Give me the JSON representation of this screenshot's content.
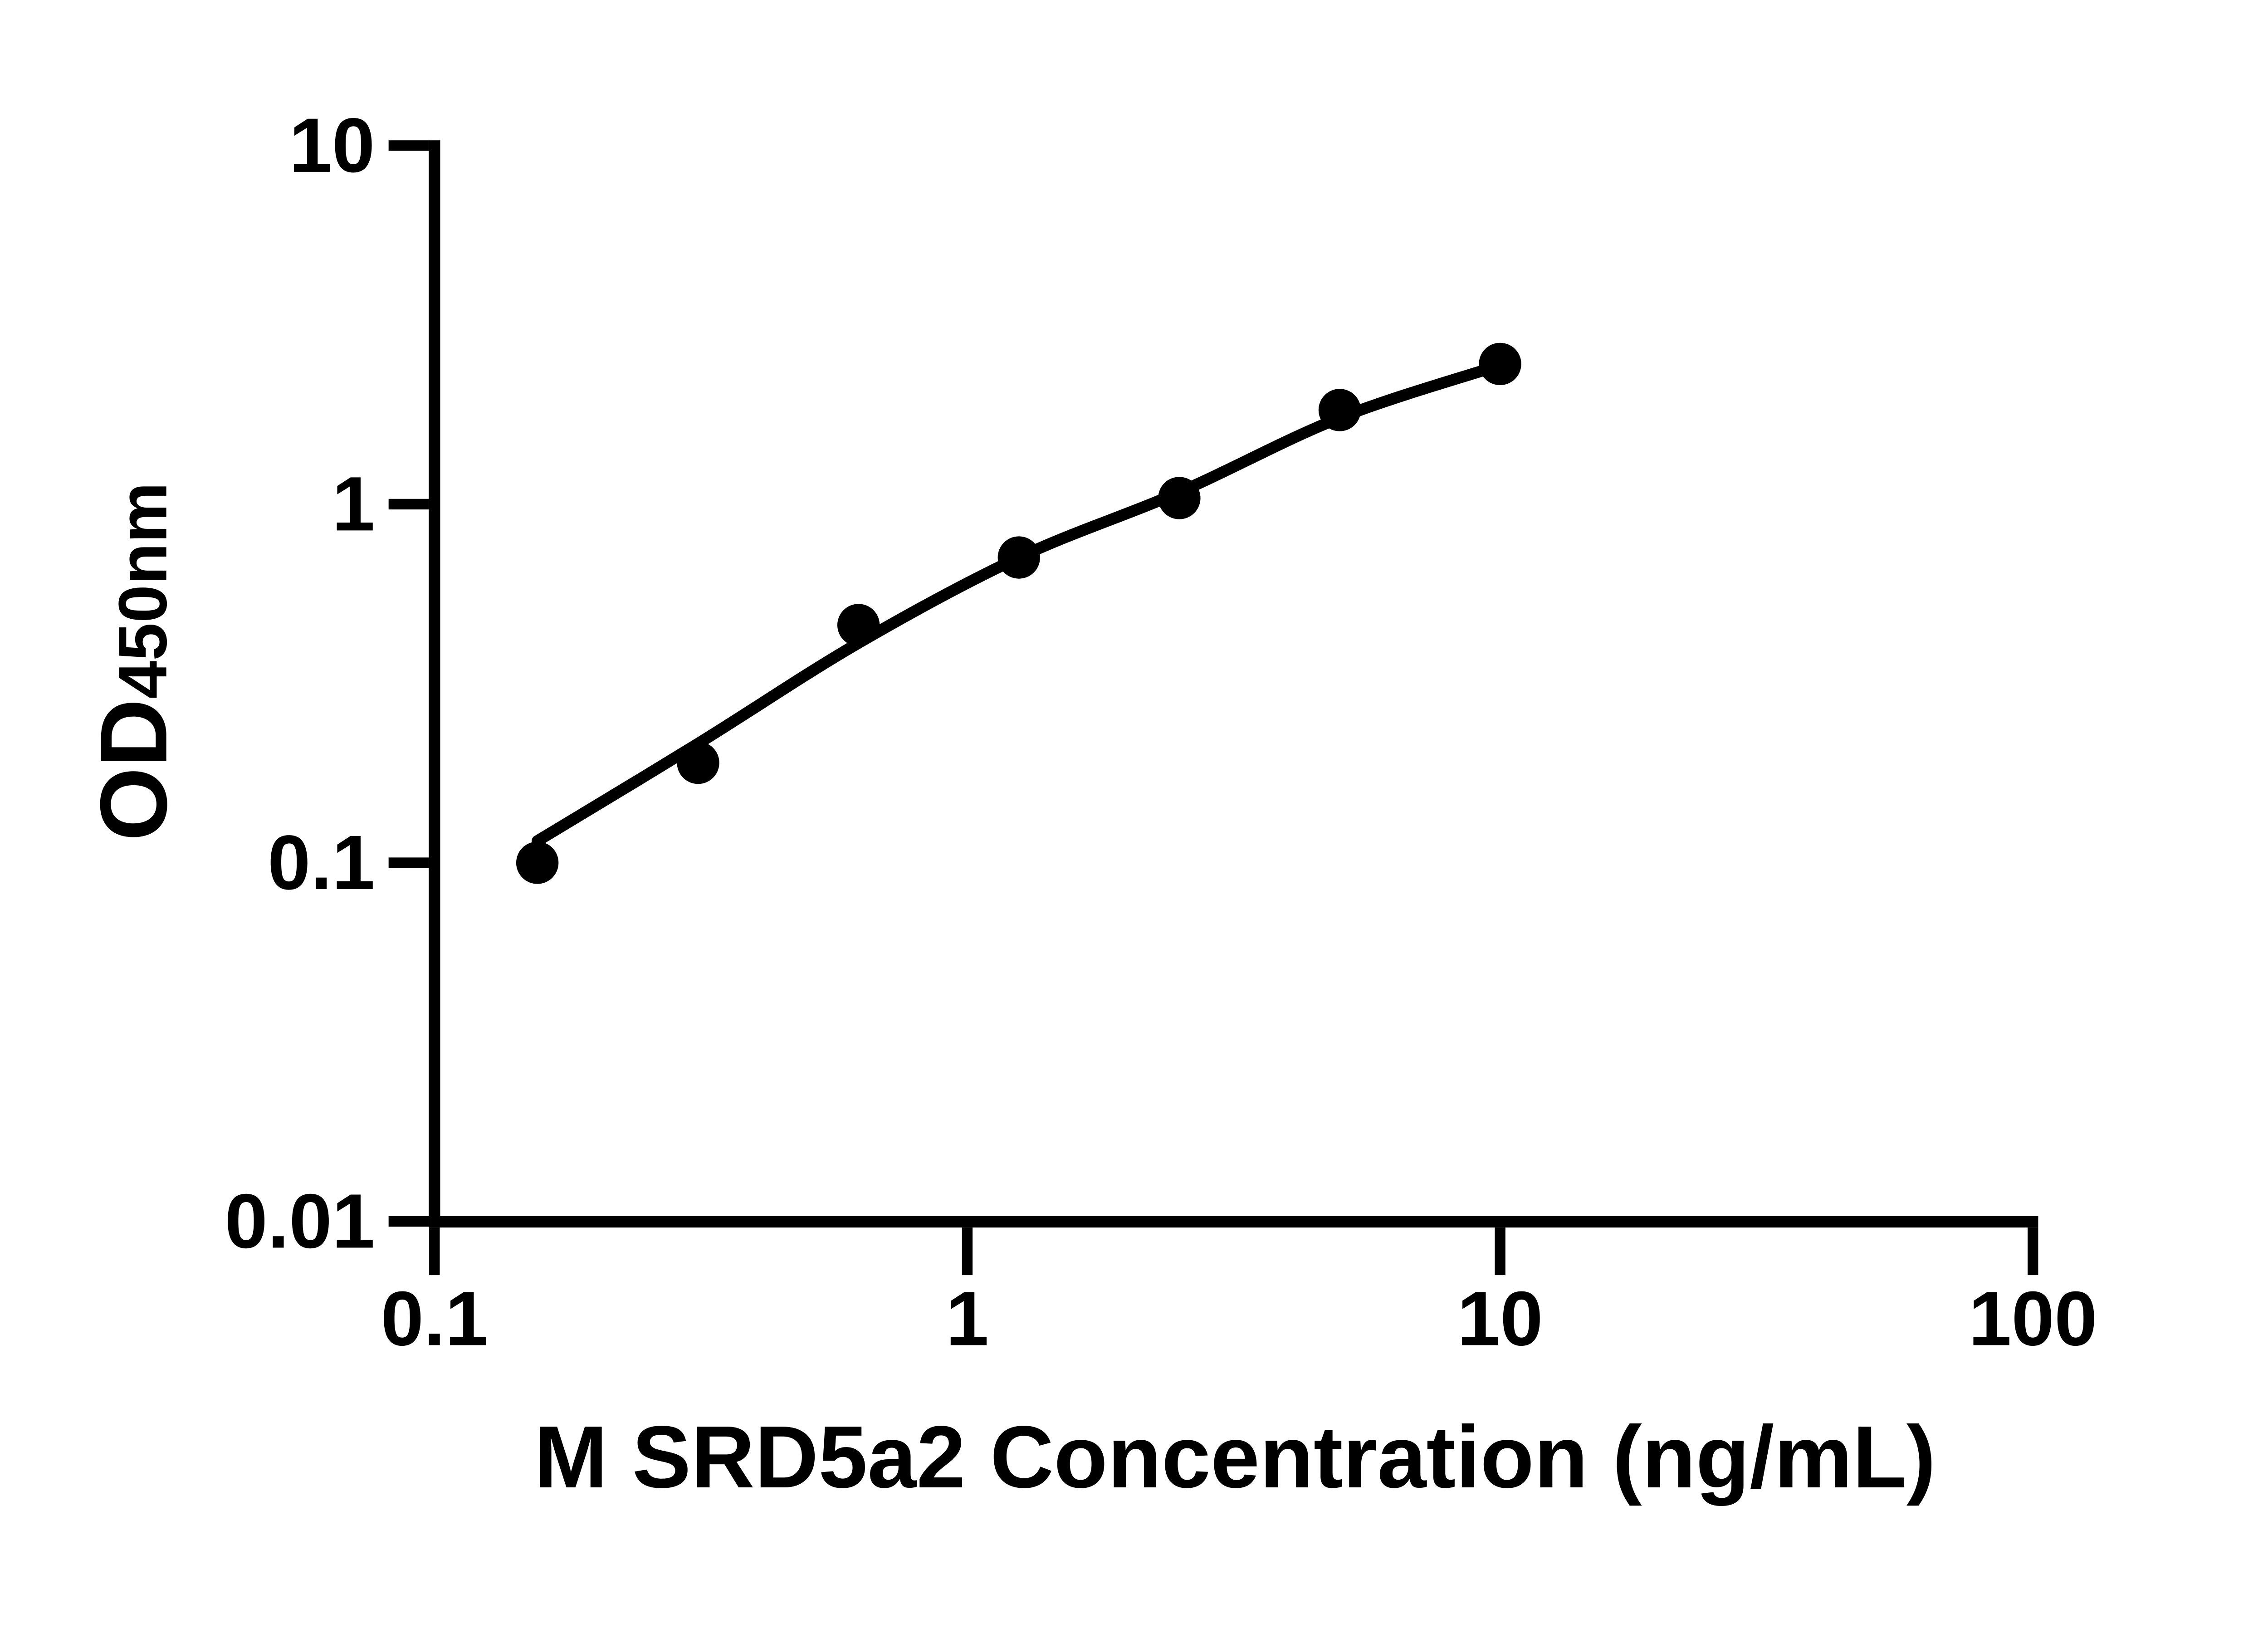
{
  "figure": {
    "background_color": "#ffffff",
    "ink_color": "#000000",
    "kind": "ELISA standard curve (log-log scatter with fitted trend curve)"
  },
  "chart_data": {
    "type": "scatter",
    "title": "",
    "xlabel": "M SRD5a2 Concentration (ng/mL)",
    "ylabel_main": "OD",
    "ylabel_sub": "450nm",
    "x_scale": "log",
    "y_scale": "log",
    "xlim": [
      0.1,
      100
    ],
    "ylim": [
      0.01,
      10
    ],
    "grid": false,
    "legend": "none",
    "x_ticks": [
      {
        "value": 0.1,
        "label": "0.1"
      },
      {
        "value": 1,
        "label": "1"
      },
      {
        "value": 10,
        "label": "10"
      },
      {
        "value": 100,
        "label": "100"
      }
    ],
    "y_ticks": [
      {
        "value": 10,
        "label": "10"
      },
      {
        "value": 1,
        "label": "1"
      },
      {
        "value": 0.1,
        "label": "0.1"
      },
      {
        "value": 0.01,
        "label": "0.01"
      }
    ],
    "series": [
      {
        "name": "standard-points",
        "marker": "filled-circle",
        "marker_color": "#000000",
        "points": [
          {
            "x": 0.156,
            "y": 0.1
          },
          {
            "x": 0.3125,
            "y": 0.19
          },
          {
            "x": 0.625,
            "y": 0.46
          },
          {
            "x": 1.25,
            "y": 0.71
          },
          {
            "x": 2.5,
            "y": 1.04
          },
          {
            "x": 5,
            "y": 1.83
          },
          {
            "x": 10,
            "y": 2.46
          }
        ]
      }
    ],
    "trend_curve": {
      "style": "smooth-fit-line",
      "color": "#000000",
      "anchors": [
        [
          0.156,
          0.115
        ],
        [
          0.3125,
          0.215
        ],
        [
          0.625,
          0.41
        ],
        [
          1.25,
          0.71
        ],
        [
          2.5,
          1.08
        ],
        [
          5,
          1.74
        ],
        [
          10,
          2.44
        ]
      ]
    }
  }
}
